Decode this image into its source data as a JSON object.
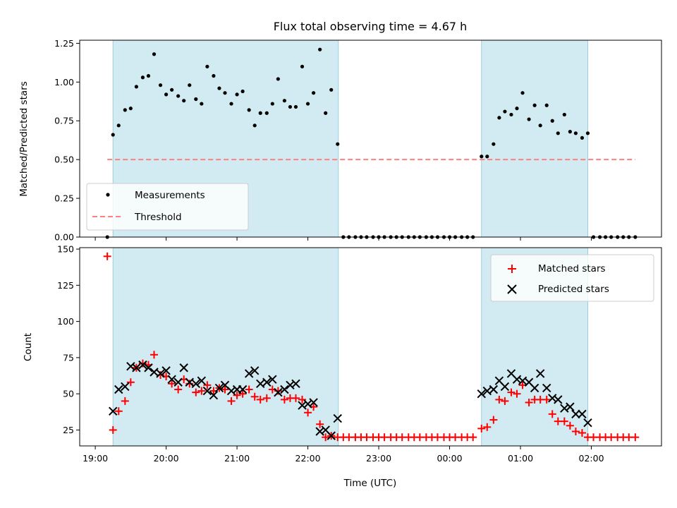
{
  "chart_data": [
    {
      "id": "ratio",
      "type": "scatter",
      "title": "Flux total observing time = 4.67 h",
      "ylabel": "Matched/Predicted stars",
      "xlabel": "",
      "x_unit": "hours since 19:00 UTC",
      "xlim": [
        -0.22,
        7.99
      ],
      "ylim": [
        0,
        1.27
      ],
      "yticks": [
        0.0,
        0.25,
        0.5,
        0.75,
        1.0,
        1.25
      ],
      "ytick_labels": [
        "0.00",
        "0.25",
        "0.50",
        "0.75",
        "1.00",
        "1.25"
      ],
      "xticks": [
        0,
        1,
        2,
        3,
        4,
        5,
        6,
        7
      ],
      "shaded_intervals": [
        [
          0.25,
          3.43
        ],
        [
          5.45,
          6.95
        ]
      ],
      "shade_color": "#add8e6",
      "legend": {
        "placement": "lower-left",
        "entries": [
          "Measurements",
          "Threshold"
        ]
      },
      "series": [
        {
          "name": "Measurements",
          "marker": "dot",
          "color": "#000000",
          "points": [
            [
              0.17,
              0.0
            ],
            [
              0.25,
              0.66
            ],
            [
              0.33,
              0.72
            ],
            [
              0.42,
              0.82
            ],
            [
              0.5,
              0.83
            ],
            [
              0.58,
              0.97
            ],
            [
              0.67,
              1.03
            ],
            [
              0.75,
              1.04
            ],
            [
              0.83,
              1.18
            ],
            [
              0.92,
              0.98
            ],
            [
              1.0,
              0.92
            ],
            [
              1.08,
              0.95
            ],
            [
              1.17,
              0.91
            ],
            [
              1.25,
              0.88
            ],
            [
              1.33,
              0.98
            ],
            [
              1.42,
              0.89
            ],
            [
              1.5,
              0.86
            ],
            [
              1.58,
              1.1
            ],
            [
              1.67,
              1.04
            ],
            [
              1.75,
              0.96
            ],
            [
              1.83,
              0.93
            ],
            [
              1.92,
              0.86
            ],
            [
              2.0,
              0.92
            ],
            [
              2.08,
              0.94
            ],
            [
              2.17,
              0.82
            ],
            [
              2.25,
              0.72
            ],
            [
              2.33,
              0.8
            ],
            [
              2.42,
              0.8
            ],
            [
              2.5,
              0.86
            ],
            [
              2.58,
              1.02
            ],
            [
              2.67,
              0.88
            ],
            [
              2.75,
              0.84
            ],
            [
              2.83,
              0.84
            ],
            [
              2.92,
              1.1
            ],
            [
              3.0,
              0.86
            ],
            [
              3.08,
              0.93
            ],
            [
              3.17,
              1.21
            ],
            [
              3.25,
              0.8
            ],
            [
              3.33,
              0.95
            ],
            [
              3.42,
              0.6
            ],
            [
              3.5,
              0.0
            ],
            [
              3.58,
              0.0
            ],
            [
              3.67,
              0.0
            ],
            [
              3.75,
              0.0
            ],
            [
              3.83,
              0.0
            ],
            [
              3.92,
              0.0
            ],
            [
              4.0,
              0.0
            ],
            [
              4.08,
              0.0
            ],
            [
              4.17,
              0.0
            ],
            [
              4.25,
              0.0
            ],
            [
              4.33,
              0.0
            ],
            [
              4.42,
              0.0
            ],
            [
              4.5,
              0.0
            ],
            [
              4.58,
              0.0
            ],
            [
              4.67,
              0.0
            ],
            [
              4.75,
              0.0
            ],
            [
              4.83,
              0.0
            ],
            [
              4.92,
              0.0
            ],
            [
              5.0,
              0.0
            ],
            [
              5.08,
              0.0
            ],
            [
              5.17,
              0.0
            ],
            [
              5.25,
              0.0
            ],
            [
              5.33,
              0.0
            ],
            [
              5.45,
              0.52
            ],
            [
              5.53,
              0.52
            ],
            [
              5.62,
              0.6
            ],
            [
              5.7,
              0.77
            ],
            [
              5.78,
              0.81
            ],
            [
              5.87,
              0.79
            ],
            [
              5.95,
              0.83
            ],
            [
              6.03,
              0.93
            ],
            [
              6.12,
              0.76
            ],
            [
              6.2,
              0.85
            ],
            [
              6.28,
              0.72
            ],
            [
              6.37,
              0.85
            ],
            [
              6.45,
              0.75
            ],
            [
              6.53,
              0.67
            ],
            [
              6.62,
              0.79
            ],
            [
              6.7,
              0.68
            ],
            [
              6.78,
              0.67
            ],
            [
              6.87,
              0.64
            ],
            [
              6.95,
              0.67
            ],
            [
              7.03,
              0.0
            ],
            [
              7.12,
              0.0
            ],
            [
              7.2,
              0.0
            ],
            [
              7.28,
              0.0
            ],
            [
              7.37,
              0.0
            ],
            [
              7.45,
              0.0
            ],
            [
              7.53,
              0.0
            ],
            [
              7.62,
              0.0
            ]
          ]
        },
        {
          "name": "Threshold",
          "marker": "dashed-line",
          "color": "#ff8080",
          "points": [
            [
              0.17,
              0.5
            ],
            [
              7.62,
              0.5
            ]
          ]
        }
      ]
    },
    {
      "id": "counts",
      "type": "scatter",
      "title": "",
      "ylabel": "Count",
      "xlabel": "Time (UTC)",
      "x_unit": "hours since 19:00 UTC",
      "xlim": [
        -0.22,
        7.99
      ],
      "ylim": [
        14,
        151
      ],
      "yticks": [
        25,
        50,
        75,
        100,
        125,
        150
      ],
      "ytick_labels": [
        "25",
        "50",
        "75",
        "100",
        "125",
        "150"
      ],
      "xticks": [
        0,
        1,
        2,
        3,
        4,
        5,
        6,
        7
      ],
      "xtick_labels": [
        "19:00",
        "20:00",
        "21:00",
        "22:00",
        "23:00",
        "00:00",
        "01:00",
        "02:00"
      ],
      "shaded_intervals": [
        [
          0.25,
          3.43
        ],
        [
          5.45,
          6.95
        ]
      ],
      "shade_color": "#add8e6",
      "legend": {
        "placement": "top-right",
        "entries": [
          "Matched stars",
          "Predicted stars"
        ]
      },
      "series": [
        {
          "name": "Matched stars",
          "marker": "plus",
          "color": "#ff0000",
          "points": [
            [
              0.17,
              145
            ],
            [
              0.25,
              25
            ],
            [
              0.33,
              38
            ],
            [
              0.42,
              45
            ],
            [
              0.5,
              58
            ],
            [
              0.58,
              68
            ],
            [
              0.67,
              71
            ],
            [
              0.75,
              70
            ],
            [
              0.83,
              77
            ],
            [
              0.92,
              63
            ],
            [
              1.0,
              62
            ],
            [
              1.08,
              57
            ],
            [
              1.17,
              53
            ],
            [
              1.25,
              60
            ],
            [
              1.33,
              57
            ],
            [
              1.42,
              51
            ],
            [
              1.5,
              52
            ],
            [
              1.58,
              56
            ],
            [
              1.67,
              52
            ],
            [
              1.75,
              54
            ],
            [
              1.83,
              53
            ],
            [
              1.92,
              45
            ],
            [
              2.0,
              49
            ],
            [
              2.08,
              50
            ],
            [
              2.17,
              53
            ],
            [
              2.25,
              48
            ],
            [
              2.33,
              46
            ],
            [
              2.42,
              47
            ],
            [
              2.5,
              53
            ],
            [
              2.58,
              52
            ],
            [
              2.67,
              46
            ],
            [
              2.75,
              47
            ],
            [
              2.83,
              47
            ],
            [
              2.92,
              46
            ],
            [
              3.0,
              37
            ],
            [
              3.08,
              41
            ],
            [
              3.17,
              29
            ],
            [
              3.25,
              20
            ],
            [
              3.33,
              21
            ],
            [
              3.42,
              20
            ],
            [
              3.5,
              20
            ],
            [
              3.58,
              20
            ],
            [
              3.67,
              20
            ],
            [
              3.75,
              20
            ],
            [
              3.83,
              20
            ],
            [
              3.92,
              20
            ],
            [
              4.0,
              20
            ],
            [
              4.08,
              20
            ],
            [
              4.17,
              20
            ],
            [
              4.25,
              20
            ],
            [
              4.33,
              20
            ],
            [
              4.42,
              20
            ],
            [
              4.5,
              20
            ],
            [
              4.58,
              20
            ],
            [
              4.67,
              20
            ],
            [
              4.75,
              20
            ],
            [
              4.83,
              20
            ],
            [
              4.92,
              20
            ],
            [
              5.0,
              20
            ],
            [
              5.08,
              20
            ],
            [
              5.17,
              20
            ],
            [
              5.25,
              20
            ],
            [
              5.33,
              20
            ],
            [
              5.45,
              26
            ],
            [
              5.53,
              27
            ],
            [
              5.62,
              32
            ],
            [
              5.7,
              46
            ],
            [
              5.78,
              45
            ],
            [
              5.87,
              51
            ],
            [
              5.95,
              50
            ],
            [
              6.03,
              56
            ],
            [
              6.12,
              44
            ],
            [
              6.2,
              46
            ],
            [
              6.28,
              46
            ],
            [
              6.37,
              46
            ],
            [
              6.45,
              36
            ],
            [
              6.53,
              31
            ],
            [
              6.62,
              31
            ],
            [
              6.7,
              28
            ],
            [
              6.78,
              24
            ],
            [
              6.87,
              23
            ],
            [
              6.95,
              20
            ],
            [
              7.03,
              20
            ],
            [
              7.12,
              20
            ],
            [
              7.2,
              20
            ],
            [
              7.28,
              20
            ],
            [
              7.37,
              20
            ],
            [
              7.45,
              20
            ],
            [
              7.53,
              20
            ],
            [
              7.62,
              20
            ]
          ]
        },
        {
          "name": "Predicted stars",
          "marker": "x",
          "color": "#000000",
          "points": [
            [
              0.25,
              38
            ],
            [
              0.33,
              53
            ],
            [
              0.42,
              55
            ],
            [
              0.5,
              69
            ],
            [
              0.58,
              68
            ],
            [
              0.67,
              70
            ],
            [
              0.75,
              68
            ],
            [
              0.83,
              65
            ],
            [
              0.92,
              64
            ],
            [
              1.0,
              66
            ],
            [
              1.08,
              60
            ],
            [
              1.17,
              58
            ],
            [
              1.25,
              68
            ],
            [
              1.33,
              58
            ],
            [
              1.42,
              57
            ],
            [
              1.5,
              59
            ],
            [
              1.58,
              52
            ],
            [
              1.67,
              49
            ],
            [
              1.75,
              54
            ],
            [
              1.83,
              56
            ],
            [
              1.92,
              52
            ],
            [
              2.0,
              53
            ],
            [
              2.08,
              53
            ],
            [
              2.17,
              64
            ],
            [
              2.25,
              66
            ],
            [
              2.33,
              57
            ],
            [
              2.42,
              58
            ],
            [
              2.5,
              60
            ],
            [
              2.58,
              51
            ],
            [
              2.67,
              53
            ],
            [
              2.75,
              56
            ],
            [
              2.83,
              57
            ],
            [
              2.92,
              42
            ],
            [
              3.0,
              43
            ],
            [
              3.08,
              44
            ],
            [
              3.17,
              24
            ],
            [
              3.25,
              25
            ],
            [
              3.33,
              21
            ],
            [
              3.42,
              33
            ],
            [
              5.45,
              50
            ],
            [
              5.53,
              52
            ],
            [
              5.62,
              53
            ],
            [
              5.7,
              59
            ],
            [
              5.78,
              55
            ],
            [
              5.87,
              64
            ],
            [
              5.95,
              60
            ],
            [
              6.03,
              59
            ],
            [
              6.12,
              58
            ],
            [
              6.2,
              54
            ],
            [
              6.28,
              64
            ],
            [
              6.37,
              54
            ],
            [
              6.45,
              47
            ],
            [
              6.53,
              46
            ],
            [
              6.62,
              40
            ],
            [
              6.7,
              41
            ],
            [
              6.78,
              36
            ],
            [
              6.87,
              36
            ],
            [
              6.95,
              30
            ]
          ]
        }
      ]
    }
  ]
}
